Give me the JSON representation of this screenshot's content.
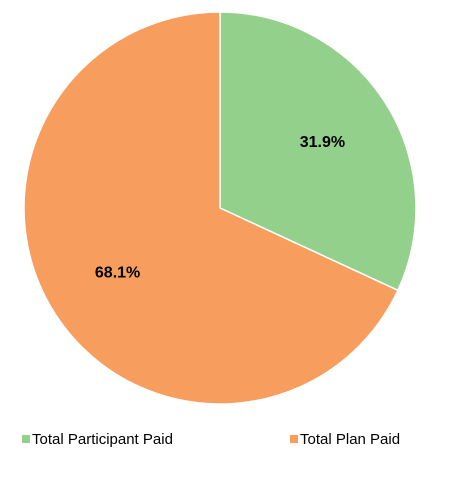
{
  "chart_data": {
    "type": "pie",
    "categories": [
      "Total Participant Paid",
      "Total Plan Paid"
    ],
    "values": [
      31.9,
      68.1
    ],
    "value_labels": [
      "31.9%",
      "68.1%"
    ],
    "colors": [
      "#93d08b",
      "#f79e5e"
    ],
    "legend": "bottom"
  }
}
